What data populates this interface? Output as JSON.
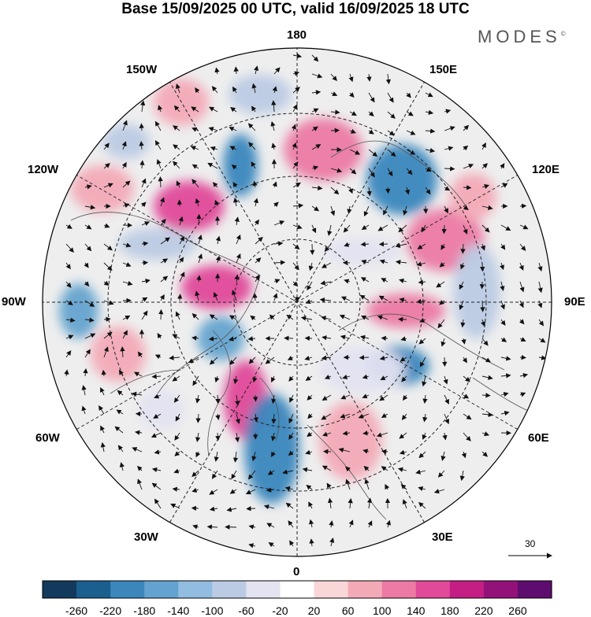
{
  "title": "Base 15/09/2025 00 UTC, valid 16/09/2025 18 UTC",
  "brand": "MODES",
  "brand_mark": "©",
  "longitude_labels": {
    "top": "180",
    "bottom": "0",
    "left": "90W",
    "right": "90E",
    "upper_left_1": "150W",
    "upper_left_2": "120W",
    "upper_right_1": "150E",
    "upper_right_2": "120E",
    "lower_left_1": "60W",
    "lower_left_2": "30W",
    "lower_right_1": "60E",
    "lower_right_2": "30E"
  },
  "vector_scale_label": "30",
  "colorbar": {
    "colors": [
      "#123a5c",
      "#1b5f8f",
      "#3a86bd",
      "#64a3cf",
      "#92bde0",
      "#bccbe4",
      "#e3e3f1",
      "#ffffff",
      "#f9d6d8",
      "#f3aab7",
      "#ec7aa4",
      "#e04a99",
      "#c41e85",
      "#931279",
      "#5e0d6e"
    ],
    "labels": [
      "-260",
      "-220",
      "-180",
      "-140",
      "-100",
      "-60",
      "-20",
      "20",
      "60",
      "100",
      "140",
      "180",
      "220",
      "260"
    ]
  },
  "colors": {
    "land": "#eeeeee",
    "grid": "#222222",
    "coast": "#555555"
  }
}
